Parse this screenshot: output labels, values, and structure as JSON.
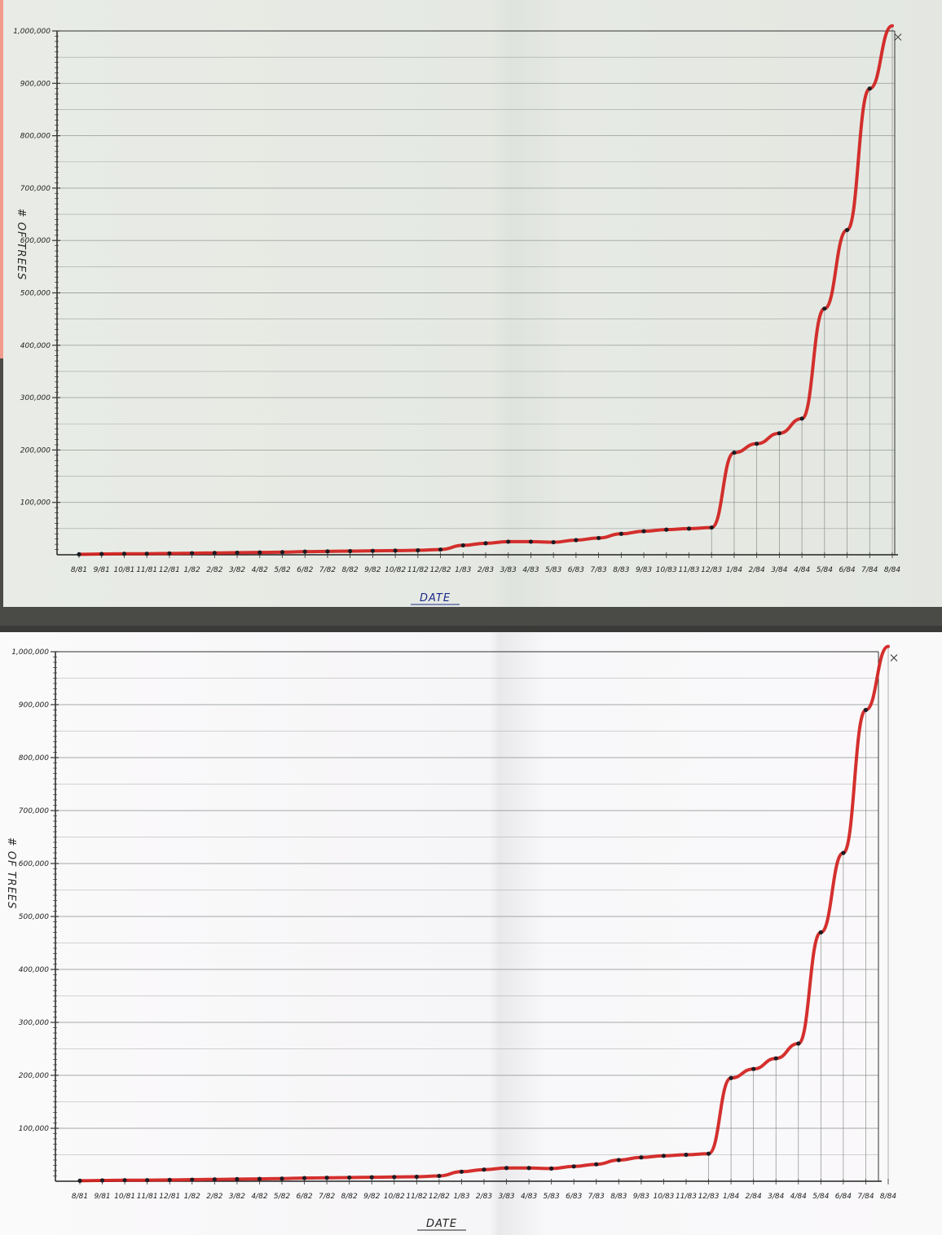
{
  "chart_data": [
    {
      "type": "line",
      "xlabel": "DATE",
      "ylabel": "# OF TREES",
      "ylim": [
        0,
        1000000
      ],
      "yticks": [
        "100,000",
        "200,000",
        "300,000",
        "400,000",
        "500,000",
        "600,000",
        "700,000",
        "800,000",
        "900,000",
        "1,000,000"
      ],
      "categories": [
        "8/81",
        "9/81",
        "10/81",
        "11/81",
        "12/81",
        "1/82",
        "2/82",
        "3/82",
        "4/82",
        "5/82",
        "6/82",
        "7/82",
        "8/82",
        "9/82",
        "10/82",
        "11/82",
        "12/82",
        "1/83",
        "2/83",
        "3/83",
        "4/83",
        "5/83",
        "6/83",
        "7/83",
        "8/83",
        "9/83",
        "10/83",
        "11/83",
        "12/83",
        "1/84",
        "2/84",
        "3/84",
        "4/84",
        "5/84",
        "6/84",
        "7/84",
        "8/84"
      ],
      "series": [
        {
          "values": [
            1000,
            1500,
            2000,
            2000,
            2500,
            3000,
            3500,
            4000,
            4500,
            5000,
            6000,
            6500,
            7000,
            7500,
            8000,
            8500,
            10000,
            18000,
            22000,
            25000,
            25000,
            24000,
            28000,
            32000,
            40000,
            45000,
            48000,
            50000,
            52000,
            195000,
            212000,
            232000,
            260000,
            470000,
            620000,
            890000,
            1010000
          ]
        }
      ],
      "grid": true,
      "legend": "none",
      "line_color": "#d01e1c",
      "point_color": "#1c1c22"
    },
    {
      "type": "line",
      "xlabel": "DATE",
      "ylabel": "# OF TREES",
      "ylim": [
        0,
        1000000
      ],
      "yticks": [
        "100,000",
        "200,000",
        "300,000",
        "400,000",
        "500,000",
        "600,000",
        "700,000",
        "800,000",
        "900,000",
        "1,000,000"
      ],
      "categories": [
        "8/81",
        "9/81",
        "10/81",
        "11/81",
        "12/81",
        "1/82",
        "2/82",
        "3/82",
        "4/82",
        "5/82",
        "6/82",
        "7/82",
        "8/82",
        "9/82",
        "10/82",
        "11/82",
        "12/82",
        "1/83",
        "2/83",
        "3/83",
        "4/83",
        "5/83",
        "6/83",
        "7/83",
        "8/83",
        "9/83",
        "10/83",
        "11/83",
        "12/83",
        "1/84",
        "2/84",
        "3/84",
        "4/84",
        "5/84",
        "6/84",
        "7/84",
        "8/84"
      ],
      "series": [
        {
          "values": [
            1000,
            1500,
            2000,
            2000,
            2500,
            3000,
            3500,
            4000,
            4500,
            5000,
            6000,
            6500,
            7000,
            7500,
            8000,
            8500,
            10000,
            18000,
            22000,
            25000,
            25000,
            24000,
            28000,
            32000,
            40000,
            45000,
            48000,
            50000,
            52000,
            195000,
            212000,
            232000,
            260000,
            470000,
            620000,
            890000,
            1010000
          ]
        }
      ],
      "grid": true,
      "legend": "none",
      "line_color": "#d01e1c",
      "point_color": "#1c1c22"
    }
  ]
}
